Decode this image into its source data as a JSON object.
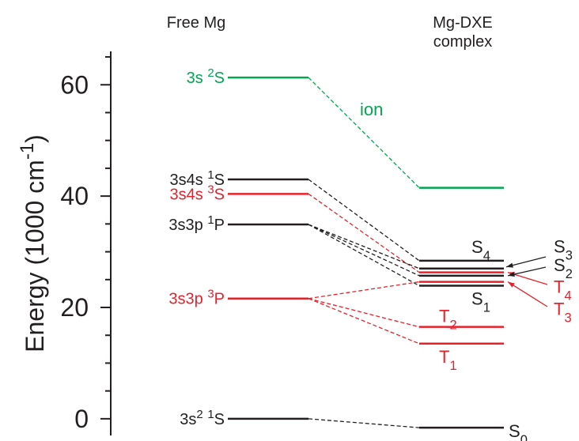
{
  "chart_data": {
    "type": "energy-level",
    "columns": [
      "Free Mg",
      [
        "Mg-DXE",
        "complex"
      ]
    ],
    "ylabel": [
      "Energy (1000 cm",
      {
        "sup": "-1"
      },
      ")"
    ],
    "ylim": [
      -3,
      66
    ],
    "yticks": [
      0,
      20,
      40,
      60
    ],
    "yminor_ticks": [
      5,
      10,
      15,
      25,
      30,
      35,
      45,
      50,
      55,
      65
    ],
    "free_levels": [
      {
        "label": [
          "3s ",
          {
            "sup": "2"
          },
          "S"
        ],
        "value": 61.3,
        "color": "#00a650"
      },
      {
        "label": [
          "3s4s ",
          {
            "sup": "1"
          },
          "S"
        ],
        "value": 43.0,
        "color": "#231f20"
      },
      {
        "label": [
          "3s4s ",
          {
            "sup": "3"
          },
          "S"
        ],
        "value": 40.4,
        "color": "#e8202a"
      },
      {
        "label": [
          "3s3p ",
          {
            "sup": "1"
          },
          "P"
        ],
        "value": 34.9,
        "color": "#231f20"
      },
      {
        "label": [
          "3s3p ",
          {
            "sup": "3"
          },
          "P"
        ],
        "value": 21.6,
        "color": "#e8202a"
      },
      {
        "label": [
          "3s",
          {
            "sup": "2"
          },
          " ",
          {
            "sup": "1"
          },
          "S"
        ],
        "value": 0,
        "color": "#231f20"
      }
    ],
    "complex_levels": [
      {
        "label": null,
        "value": 41.5,
        "color": "#00a650"
      },
      {
        "label": [
          "S",
          {
            "sub": "4"
          }
        ],
        "value": 28.4,
        "color": "#231f20"
      },
      {
        "label": [
          "S",
          {
            "sub": "3"
          }
        ],
        "value": 27.0,
        "color": "#231f20"
      },
      {
        "label": [
          "T",
          {
            "sub": "4"
          }
        ],
        "value": 26.3,
        "color": "#e8202a"
      },
      {
        "label": [
          "S",
          {
            "sub": "2"
          }
        ],
        "value": 25.7,
        "color": "#231f20"
      },
      {
        "label": [
          "T",
          {
            "sub": "3"
          }
        ],
        "value": 24.6,
        "color": "#e8202a"
      },
      {
        "label": [
          "S",
          {
            "sub": "1"
          }
        ],
        "value": 23.9,
        "color": "#231f20"
      },
      {
        "label": [
          "T",
          {
            "sub": "2"
          }
        ],
        "value": 16.5,
        "color": "#e8202a"
      },
      {
        "label": [
          "T",
          {
            "sub": "1"
          }
        ],
        "value": 13.5,
        "color": "#e8202a"
      },
      {
        "label": [
          "S",
          {
            "sub": "0"
          }
        ],
        "value": -1.6,
        "color": "#231f20"
      }
    ],
    "connections": [
      {
        "from": 0,
        "to": 0
      },
      {
        "from": 1,
        "to": 1
      },
      {
        "from": 2,
        "to": 3
      },
      {
        "from": 3,
        "to": 2
      },
      {
        "from": 3,
        "to": 4
      },
      {
        "from": 3,
        "to": 6
      },
      {
        "from": 4,
        "to": 5
      },
      {
        "from": 4,
        "to": 7
      },
      {
        "from": 4,
        "to": 8
      },
      {
        "from": 5,
        "to": 9
      }
    ],
    "annotation": "ion"
  }
}
